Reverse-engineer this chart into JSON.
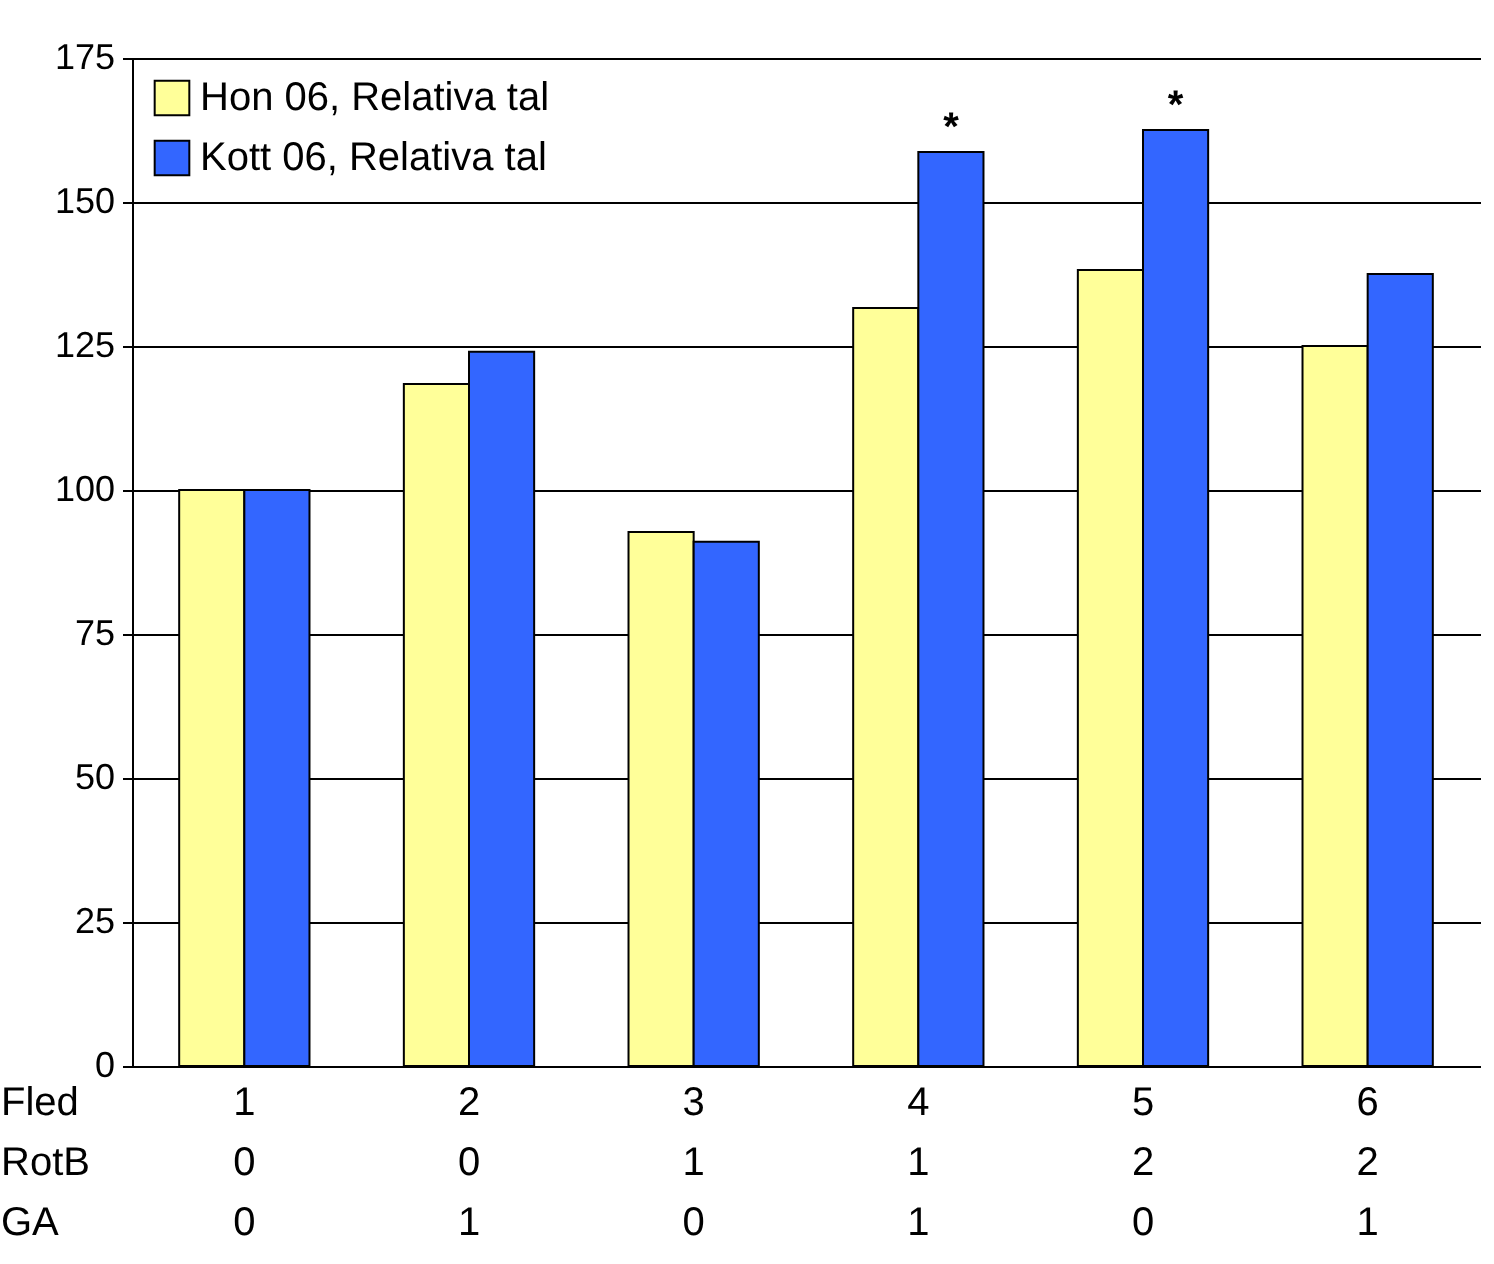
{
  "chart_data": {
    "type": "bar",
    "categories": [
      "1\n0\n0",
      "2\n0\n1",
      "3\n1\n0",
      "4\n1\n1",
      "5\n2\n0",
      "6\n2\n1"
    ],
    "series": [
      {
        "name": "Hon 06, Relativa tal",
        "color": "#ffff99",
        "values": [
          100,
          118.4,
          92.7,
          131.6,
          138.2,
          125
        ]
      },
      {
        "name": "Kott 06, Relativa tal",
        "color": "#3366ff",
        "values": [
          100,
          124,
          91,
          158.7,
          162.5,
          137.5
        ]
      }
    ],
    "ylim": [
      0,
      175
    ],
    "yticks": [
      0,
      25,
      50,
      75,
      100,
      125,
      150,
      175
    ],
    "grid": "y",
    "legend": "top left",
    "annotations": [
      "Fled",
      "RotB",
      "GA",
      {
        "text": "*",
        "x": "4\n1\n1",
        "y": 158.7
      },
      {
        "text": "*",
        "x": "5\n2\n0",
        "y": 162.5
      }
    ]
  }
}
